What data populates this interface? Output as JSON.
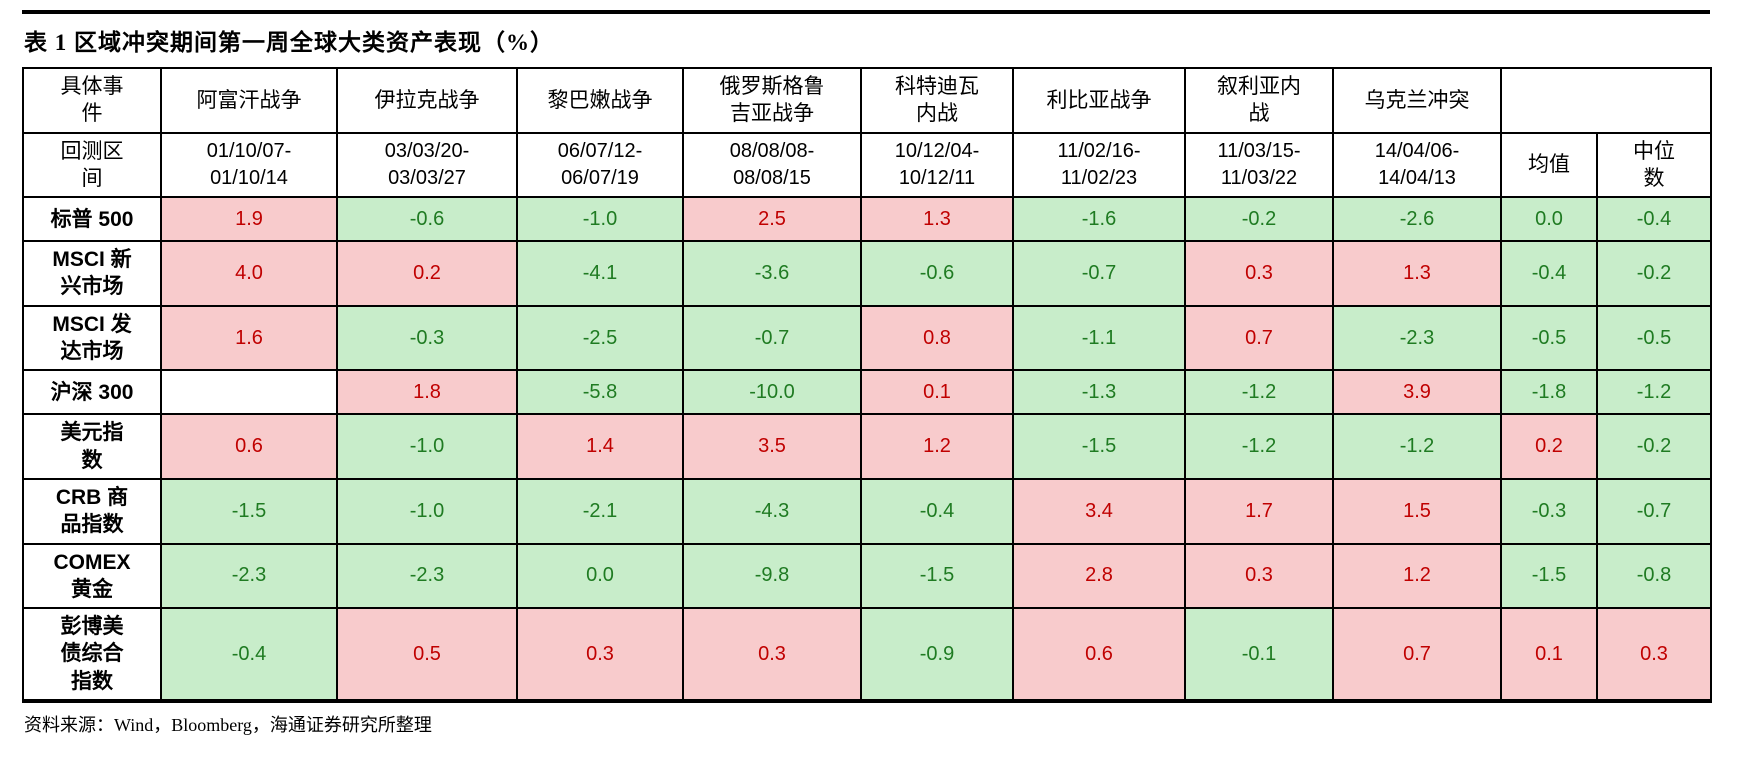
{
  "source_note": "资料来源：Wind，Bloomberg，海通证券研究所整理",
  "colors": {
    "positive_bg": "#f8cbcc",
    "positive_text": "#c00000",
    "negative_bg": "#c8edca",
    "negative_text": "#1f7b22",
    "border": "#000000",
    "page_bg": "#ffffff"
  },
  "chart_data": {
    "type": "table",
    "title": "表 1 区域冲突期间第一周全球大类资产表现（%）",
    "corner": {
      "event_label": "具体事\n件",
      "period_label": "回测区\n间"
    },
    "events": [
      "阿富汗战争",
      "伊拉克战争",
      "黎巴嫩战争",
      "俄罗斯格鲁\n吉亚战争",
      "科特迪瓦\n内战",
      "利比亚战争",
      "叙利亚内\n战",
      "乌克兰冲突"
    ],
    "periods": [
      "01/10/07-\n01/10/14",
      "03/03/20-\n03/03/27",
      "06/07/12-\n06/07/19",
      "08/08/08-\n08/08/15",
      "10/12/04-\n10/12/11",
      "11/02/16-\n11/02/23",
      "11/03/15-\n11/03/22",
      "14/04/06-\n14/04/13"
    ],
    "mean_label": "均值",
    "median_label": "中位\n数",
    "color_rule": "value > 0 → pink/red, value <= 0 → green, empty → white",
    "rows": [
      {
        "label": "标普 500",
        "values": [
          "1.9",
          "-0.6",
          "-1.0",
          "2.5",
          "1.3",
          "-1.6",
          "-0.2",
          "-2.6",
          "0.0",
          "-0.4"
        ]
      },
      {
        "label": "MSCI 新\n兴市场",
        "values": [
          "4.0",
          "0.2",
          "-4.1",
          "-3.6",
          "-0.6",
          "-0.7",
          "0.3",
          "1.3",
          "-0.4",
          "-0.2"
        ]
      },
      {
        "label": "MSCI 发\n达市场",
        "values": [
          "1.6",
          "-0.3",
          "-2.5",
          "-0.7",
          "0.8",
          "-1.1",
          "0.7",
          "-2.3",
          "-0.5",
          "-0.5"
        ]
      },
      {
        "label": "沪深 300",
        "values": [
          "",
          "1.8",
          "-5.8",
          "-10.0",
          "0.1",
          "-1.3",
          "-1.2",
          "3.9",
          "-1.8",
          "-1.2"
        ]
      },
      {
        "label": "美元指\n数",
        "values": [
          "0.6",
          "-1.0",
          "1.4",
          "3.5",
          "1.2",
          "-1.5",
          "-1.2",
          "-1.2",
          "0.2",
          "-0.2"
        ]
      },
      {
        "label": "CRB 商\n品指数",
        "values": [
          "-1.5",
          "-1.0",
          "-2.1",
          "-4.3",
          "-0.4",
          "3.4",
          "1.7",
          "1.5",
          "-0.3",
          "-0.7"
        ]
      },
      {
        "label": "COMEX\n黄金",
        "values": [
          "-2.3",
          "-2.3",
          "0.0",
          "-9.8",
          "-1.5",
          "2.8",
          "0.3",
          "1.2",
          "-1.5",
          "-0.8"
        ]
      },
      {
        "label": "彭博美\n债综合\n指数",
        "values": [
          "-0.4",
          "0.5",
          "0.3",
          "0.3",
          "-0.9",
          "0.6",
          "-0.1",
          "0.7",
          "0.1",
          "0.3"
        ]
      }
    ]
  }
}
